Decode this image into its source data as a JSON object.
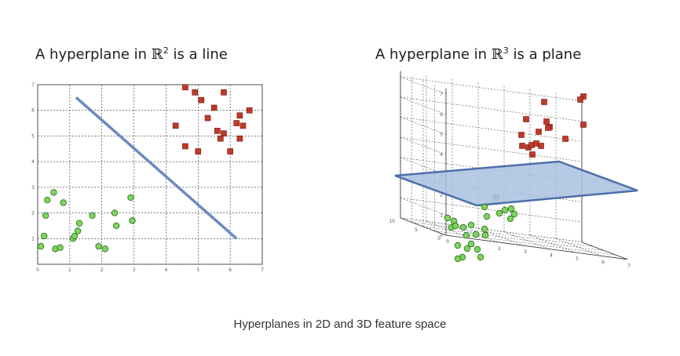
{
  "left_chart": {
    "title_pre": "A hyperplane in ",
    "title_set": "ℝ",
    "title_exp": "2",
    "title_post": " is a line"
  },
  "right_chart": {
    "title_pre": "A hyperplane in ",
    "title_set": "ℝ",
    "title_exp": "3",
    "title_post": " is a plane"
  },
  "caption": "Hyperplanes in 2D and 3D feature space",
  "chart_data": [
    {
      "type": "scatter",
      "dimensions": 2,
      "xlim": [
        0,
        7
      ],
      "ylim": [
        0,
        7
      ],
      "x_ticks": [
        "0",
        "1",
        "2",
        "3",
        "4",
        "5",
        "6",
        "7"
      ],
      "y_ticks": [
        "1",
        "2",
        "3",
        "4",
        "5",
        "6",
        "7"
      ],
      "grid": true,
      "colors": {
        "class_a": "#7fd35e",
        "class_b": "#c0392b",
        "hyperplane": "#6a8bbf"
      },
      "series": [
        {
          "marker": "circle",
          "points": [
            [
              0.1,
              0.7
            ],
            [
              0.2,
              1.1
            ],
            [
              0.25,
              1.9
            ],
            [
              0.3,
              2.5
            ],
            [
              0.5,
              2.8
            ],
            [
              0.55,
              0.6
            ],
            [
              0.7,
              0.65
            ],
            [
              0.8,
              2.4
            ],
            [
              1.1,
              1.0
            ],
            [
              1.15,
              1.1
            ],
            [
              1.25,
              1.3
            ],
            [
              1.3,
              1.6
            ],
            [
              1.7,
              1.9
            ],
            [
              1.9,
              0.7
            ],
            [
              2.1,
              0.6
            ],
            [
              2.4,
              2.0
            ],
            [
              2.45,
              1.5
            ],
            [
              2.9,
              2.6
            ],
            [
              2.95,
              1.7
            ]
          ]
        },
        {
          "marker": "square",
          "points": [
            [
              4.6,
              6.9
            ],
            [
              4.9,
              6.7
            ],
            [
              5.8,
              6.7
            ],
            [
              5.1,
              6.4
            ],
            [
              5.5,
              6.1
            ],
            [
              5.3,
              5.7
            ],
            [
              6.3,
              5.8
            ],
            [
              6.6,
              6.0
            ],
            [
              6.2,
              5.5
            ],
            [
              6.4,
              5.4
            ],
            [
              4.3,
              5.4
            ],
            [
              5.6,
              5.2
            ],
            [
              5.8,
              5.1
            ],
            [
              5.7,
              4.9
            ],
            [
              6.3,
              4.9
            ],
            [
              4.6,
              4.6
            ],
            [
              5.0,
              4.4
            ],
            [
              6.0,
              4.4
            ]
          ]
        }
      ],
      "hyperplane": {
        "shape": "line",
        "from": [
          1.2,
          6.5
        ],
        "to": [
          6.2,
          1.0
        ]
      }
    },
    {
      "type": "scatter",
      "dimensions": 3,
      "x_ticks": [
        "0",
        "1",
        "2",
        "3",
        "4",
        "5",
        "6",
        "7"
      ],
      "y_ticks": [
        "0",
        "5",
        "10"
      ],
      "z_ticks": [
        "0",
        "1",
        "2",
        "3",
        "4",
        "5",
        "6",
        "7"
      ],
      "grid": true,
      "colors": {
        "class_a": "#7fd35e",
        "class_b": "#c0392b",
        "hyperplane": "#a9bfe0"
      },
      "hyperplane": {
        "shape": "plane"
      }
    }
  ]
}
